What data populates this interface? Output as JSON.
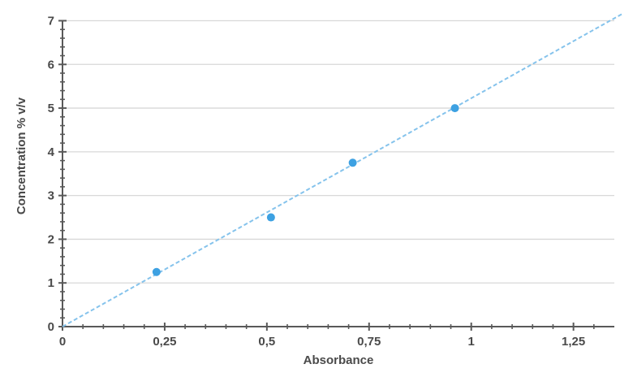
{
  "chart_data": {
    "type": "scatter",
    "xlabel": "Absorbance",
    "ylabel": "Concentration % v/v",
    "xlim": [
      0,
      1.35
    ],
    "ylim": [
      0,
      7
    ],
    "grid": "horizontal-major-only",
    "legend": "none",
    "x_major_ticks": [
      {
        "v": 0,
        "label": "0"
      },
      {
        "v": 0.25,
        "label": "0,25"
      },
      {
        "v": 0.5,
        "label": "0,5"
      },
      {
        "v": 0.75,
        "label": "0,75"
      },
      {
        "v": 1,
        "label": "1"
      },
      {
        "v": 1.25,
        "label": "1,25"
      }
    ],
    "x_minor_step": 0.05,
    "x_minor_max": 1.3,
    "y_major_ticks": [
      {
        "v": 0,
        "label": "0"
      },
      {
        "v": 1,
        "label": "1"
      },
      {
        "v": 2,
        "label": "2"
      },
      {
        "v": 3,
        "label": "3"
      },
      {
        "v": 4,
        "label": "4"
      },
      {
        "v": 5,
        "label": "5"
      },
      {
        "v": 6,
        "label": "6"
      },
      {
        "v": 7,
        "label": "7"
      }
    ],
    "y_minor_step": 0.2,
    "points": [
      {
        "x": 0.23,
        "y": 1.25
      },
      {
        "x": 0.51,
        "y": 2.5
      },
      {
        "x": 0.71,
        "y": 3.75
      },
      {
        "x": 0.96,
        "y": 5.0
      }
    ],
    "trendline": {
      "x1": 0,
      "y1": 0,
      "x2": 1.37,
      "y2": 7.16,
      "slope": 5.22,
      "intercept": 0,
      "style": "dashed"
    },
    "colors": {
      "marker": "#3da1e2",
      "trendline": "#85c3ec",
      "axis": "#595959",
      "grid": "#d8d8d8",
      "text": "#4a4a4a",
      "background": "#ffffff"
    }
  }
}
